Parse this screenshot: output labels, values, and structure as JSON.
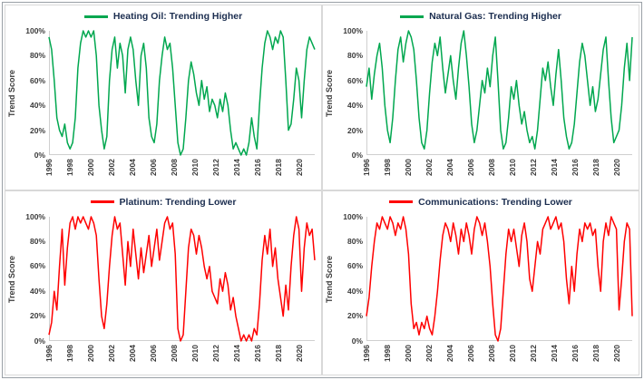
{
  "page": {
    "background": "#ffffff",
    "outer_border_color": "#9aa0a6",
    "panel_border_color": "#d8d8d8",
    "title_color": "#1b2d4f",
    "up_color": "#00A74F",
    "down_color": "#FF0000"
  },
  "chart_data": [
    {
      "type": "line",
      "title": "Heating Oil: Trending Higher",
      "series_color": "#00A74F",
      "ylabel": "Trend Score",
      "ylim": [
        0,
        100
      ],
      "grid": false,
      "legend_position": "top-center",
      "y_tick_labels": [
        "0%",
        "20%",
        "40%",
        "60%",
        "80%",
        "100%"
      ],
      "x_range": [
        1996,
        2021.5
      ],
      "x_ticks": [
        "1996",
        "1998",
        "2000",
        "2002",
        "2004",
        "2006",
        "2008",
        "2010",
        "2012",
        "2014",
        "2016",
        "2018",
        "2020"
      ],
      "values": [
        95,
        85,
        60,
        30,
        20,
        15,
        25,
        10,
        5,
        10,
        30,
        70,
        90,
        100,
        95,
        100,
        95,
        100,
        80,
        40,
        20,
        5,
        15,
        60,
        85,
        95,
        70,
        90,
        80,
        50,
        85,
        95,
        85,
        60,
        40,
        80,
        90,
        70,
        30,
        15,
        10,
        25,
        60,
        80,
        95,
        85,
        90,
        70,
        40,
        10,
        0,
        5,
        30,
        60,
        75,
        65,
        50,
        40,
        60,
        45,
        55,
        35,
        45,
        40,
        30,
        45,
        35,
        50,
        40,
        20,
        5,
        10,
        5,
        0,
        5,
        0,
        10,
        30,
        15,
        5,
        40,
        70,
        90,
        100,
        95,
        85,
        95,
        90,
        100,
        95,
        60,
        20,
        25,
        45,
        70,
        60,
        30,
        60,
        85,
        95,
        90,
        85
      ]
    },
    {
      "type": "line",
      "title": "Natural Gas: Trending Higher",
      "series_color": "#00A74F",
      "ylabel": "Trend Score",
      "ylim": [
        0,
        100
      ],
      "grid": false,
      "legend_position": "top-center",
      "y_tick_labels": [
        "0%",
        "20%",
        "40%",
        "60%",
        "80%",
        "100%"
      ],
      "x_range": [
        1996,
        2021.5
      ],
      "x_ticks": [
        "1996",
        "1998",
        "2000",
        "2002",
        "2004",
        "2006",
        "2008",
        "2010",
        "2012",
        "2014",
        "2016",
        "2018",
        "2020"
      ],
      "values": [
        55,
        70,
        45,
        65,
        80,
        90,
        70,
        40,
        20,
        10,
        30,
        60,
        85,
        95,
        75,
        90,
        100,
        95,
        85,
        60,
        30,
        10,
        5,
        20,
        50,
        75,
        90,
        80,
        95,
        70,
        50,
        65,
        80,
        60,
        45,
        70,
        90,
        100,
        80,
        55,
        25,
        10,
        20,
        40,
        60,
        50,
        70,
        55,
        80,
        95,
        60,
        20,
        5,
        10,
        30,
        55,
        45,
        60,
        40,
        25,
        35,
        20,
        10,
        15,
        5,
        20,
        45,
        70,
        60,
        75,
        55,
        40,
        65,
        85,
        60,
        30,
        15,
        5,
        10,
        25,
        50,
        75,
        90,
        80,
        60,
        40,
        55,
        35,
        45,
        65,
        85,
        95,
        60,
        30,
        10,
        15,
        20,
        40,
        70,
        90,
        60,
        95
      ]
    },
    {
      "type": "line",
      "title": "Platinum: Trending Lower",
      "series_color": "#FF0000",
      "ylabel": "Trend Score",
      "ylim": [
        0,
        100
      ],
      "grid": false,
      "legend_position": "top-center",
      "y_tick_labels": [
        "0%",
        "20%",
        "40%",
        "60%",
        "80%",
        "100%"
      ],
      "x_range": [
        1996,
        2021.5
      ],
      "x_ticks": [
        "1996",
        "1998",
        "2000",
        "2002",
        "2004",
        "2006",
        "2008",
        "2010",
        "2012",
        "2014",
        "2016",
        "2018",
        "2020"
      ],
      "values": [
        5,
        15,
        40,
        25,
        60,
        90,
        45,
        75,
        95,
        100,
        90,
        100,
        95,
        100,
        95,
        90,
        100,
        95,
        85,
        50,
        20,
        10,
        30,
        60,
        85,
        100,
        90,
        95,
        70,
        45,
        80,
        60,
        90,
        70,
        50,
        75,
        55,
        70,
        85,
        60,
        75,
        90,
        65,
        80,
        95,
        100,
        90,
        95,
        70,
        10,
        0,
        5,
        40,
        75,
        90,
        85,
        70,
        85,
        75,
        60,
        50,
        60,
        40,
        35,
        30,
        50,
        40,
        55,
        45,
        25,
        35,
        20,
        10,
        0,
        5,
        0,
        5,
        0,
        10,
        5,
        30,
        65,
        85,
        70,
        90,
        60,
        75,
        50,
        35,
        20,
        45,
        25,
        60,
        85,
        100,
        90,
        40,
        75,
        95,
        85,
        90,
        65
      ]
    },
    {
      "type": "line",
      "title": "Communications: Trending Lower",
      "series_color": "#FF0000",
      "ylabel": "Trend Score",
      "ylim": [
        0,
        100
      ],
      "grid": false,
      "legend_position": "top-center",
      "y_tick_labels": [
        "0%",
        "20%",
        "40%",
        "60%",
        "80%",
        "100%"
      ],
      "x_range": [
        1996,
        2021.5
      ],
      "x_ticks": [
        "1996",
        "1998",
        "2000",
        "2002",
        "2004",
        "2006",
        "2008",
        "2010",
        "2012",
        "2014",
        "2016",
        "2018",
        "2020"
      ],
      "values": [
        20,
        35,
        60,
        80,
        95,
        90,
        100,
        95,
        90,
        100,
        95,
        85,
        95,
        90,
        100,
        90,
        70,
        30,
        10,
        15,
        5,
        15,
        10,
        20,
        10,
        5,
        20,
        40,
        65,
        85,
        95,
        90,
        80,
        95,
        85,
        70,
        90,
        80,
        95,
        85,
        70,
        90,
        100,
        95,
        85,
        95,
        80,
        60,
        30,
        5,
        0,
        10,
        40,
        70,
        90,
        80,
        90,
        75,
        60,
        85,
        95,
        80,
        50,
        40,
        60,
        80,
        70,
        90,
        95,
        100,
        90,
        95,
        100,
        90,
        95,
        80,
        50,
        30,
        60,
        40,
        70,
        90,
        80,
        95,
        90,
        95,
        85,
        90,
        60,
        40,
        80,
        95,
        85,
        100,
        95,
        90,
        25,
        50,
        80,
        95,
        90,
        20
      ]
    }
  ]
}
